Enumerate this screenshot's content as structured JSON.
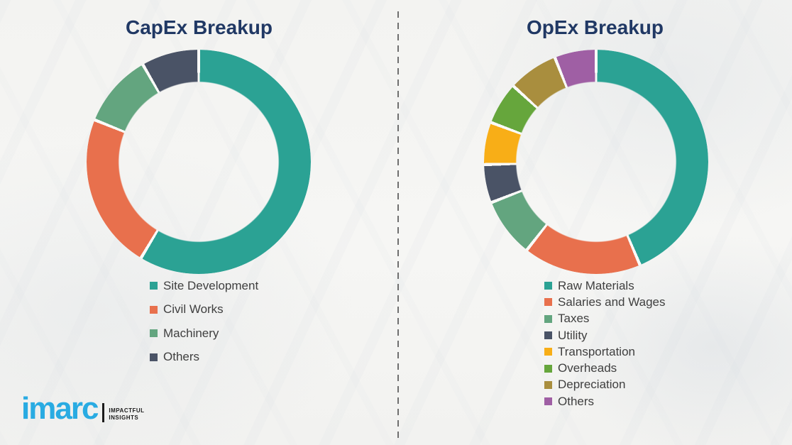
{
  "chart_data": [
    {
      "type": "pie",
      "subtype": "donut",
      "title": "CapEx Breakup",
      "labels": [
        "Site Development",
        "Civil Works",
        "Machinery",
        "Others"
      ],
      "values": [
        58.6,
        22.5,
        10.6,
        8.3
      ],
      "colors": [
        "#2ba294",
        "#e8704d",
        "#63a57f",
        "#4a5366"
      ],
      "units": "percent (estimated from arc angles; no data labels shown)",
      "start_angle_deg": 0,
      "direction": "clockwise",
      "hole_ratio": 0.715,
      "gap_deg": 1.6,
      "gap_color": "#fafaf8",
      "legend_position": "below-chart-left",
      "grid": false
    },
    {
      "type": "pie",
      "subtype": "donut",
      "title": "OpEx Breakup",
      "labels": [
        "Raw Materials",
        "Salaries and Wages",
        "Taxes",
        "Utility",
        "Transportation",
        "Overheads",
        "Depreciation",
        "Others"
      ],
      "values": [
        43.6,
        17.0,
        8.5,
        5.5,
        6.1,
        6.1,
        7.2,
        6.0
      ],
      "colors": [
        "#2ba294",
        "#e8704d",
        "#63a57f",
        "#4a5366",
        "#f8ae17",
        "#66a63c",
        "#a98e3e",
        "#9f5fa4"
      ],
      "units": "percent (estimated from arc angles; no data labels shown)",
      "start_angle_deg": 0,
      "direction": "clockwise",
      "hole_ratio": 0.715,
      "gap_deg": 1.6,
      "gap_color": "#fafaf8",
      "legend_position": "below-chart-left",
      "grid": false
    }
  ],
  "logo": {
    "brand": "imarc",
    "tagline_line1": "IMPACTFUL",
    "tagline_line2": "INSIGHTS"
  },
  "colors": {
    "title": "#203864",
    "legend_text": "#3f3f3f",
    "divider": "#6f6f6f",
    "logo_blue": "#29abe2",
    "background": "#f4f4f2"
  }
}
